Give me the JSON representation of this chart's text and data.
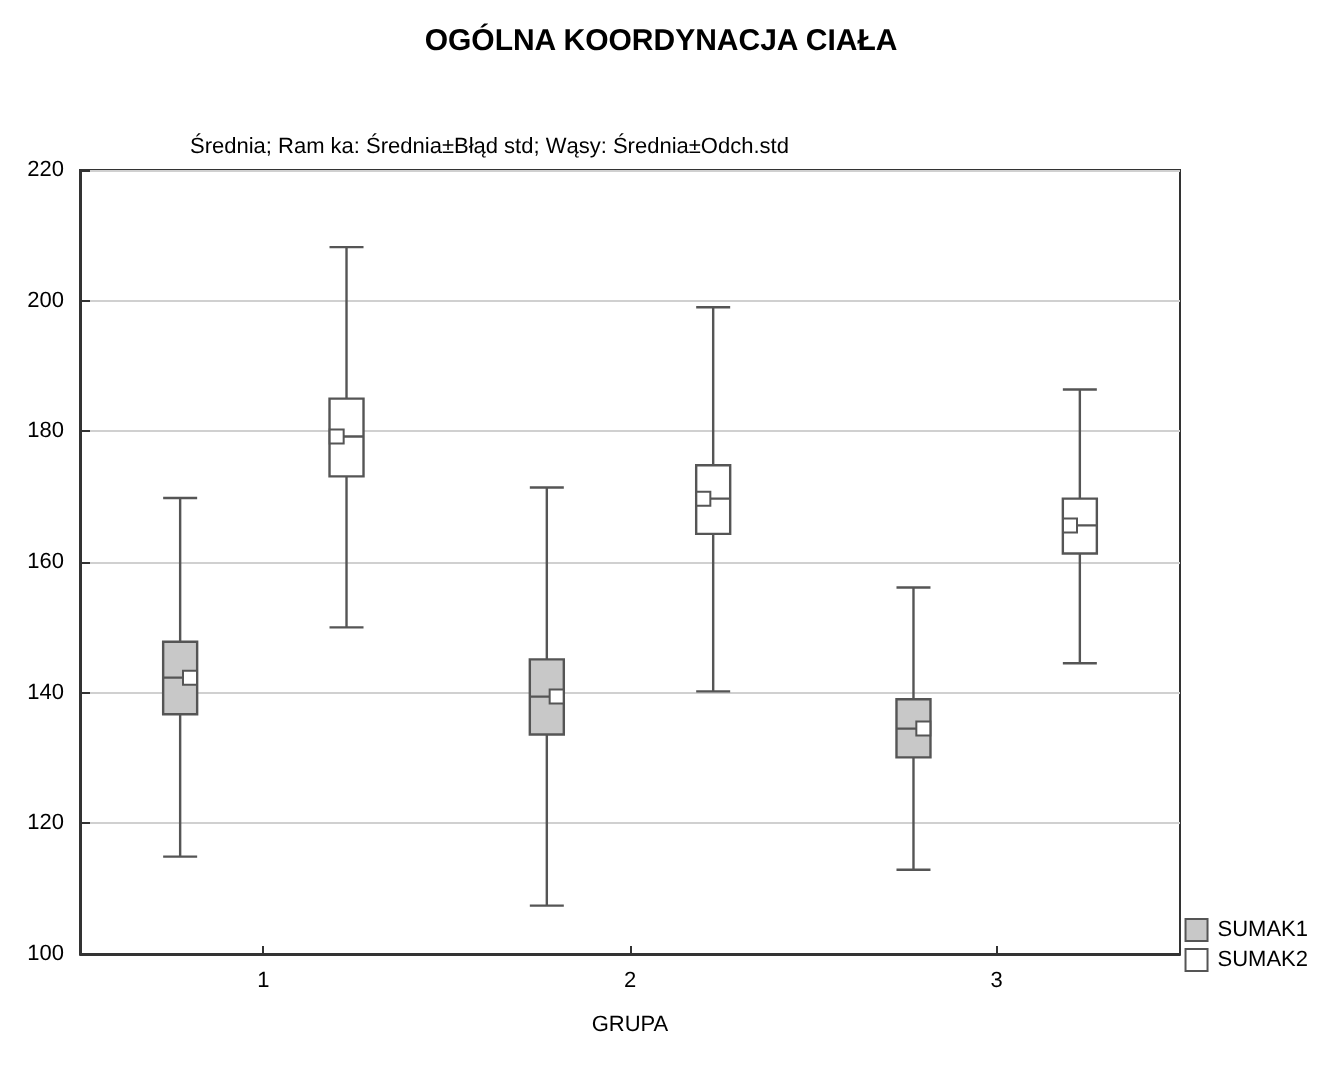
{
  "chart_data": {
    "type": "box",
    "title": "OGÓLNA KOORDYNACJA CIAŁA",
    "subtitle": "Średnia; Ram ka: Średnia±Błąd std; Wąsy: Średnia±Odch.std",
    "xlabel": "GRUPA",
    "categories": [
      "1",
      "2",
      "3"
    ],
    "series": [
      {
        "name": "SUMAK1",
        "color": "#c8c8c8",
        "boxes": [
          {
            "low": 114.9,
            "q1": 136.7,
            "median": 142.3,
            "q3": 147.8,
            "high": 169.8
          },
          {
            "low": 107.4,
            "q1": 133.6,
            "median": 139.4,
            "q3": 145.1,
            "high": 171.4
          },
          {
            "low": 112.9,
            "q1": 130.1,
            "median": 134.5,
            "q3": 139.0,
            "high": 156.1
          }
        ]
      },
      {
        "name": "SUMAK2",
        "color": "#ffffff",
        "boxes": [
          {
            "low": 150.0,
            "q1": 173.1,
            "median": 179.2,
            "q3": 185.0,
            "high": 208.2
          },
          {
            "low": 140.2,
            "q1": 164.3,
            "median": 169.7,
            "q3": 174.8,
            "high": 199.0
          },
          {
            "low": 144.5,
            "q1": 161.3,
            "median": 165.6,
            "q3": 169.7,
            "high": 186.4
          }
        ]
      }
    ],
    "ylim": [
      100,
      220
    ],
    "yticks": [
      100,
      120,
      140,
      160,
      180,
      200,
      220
    ],
    "grid": "y",
    "legend": "bottom right",
    "marker": "square"
  }
}
